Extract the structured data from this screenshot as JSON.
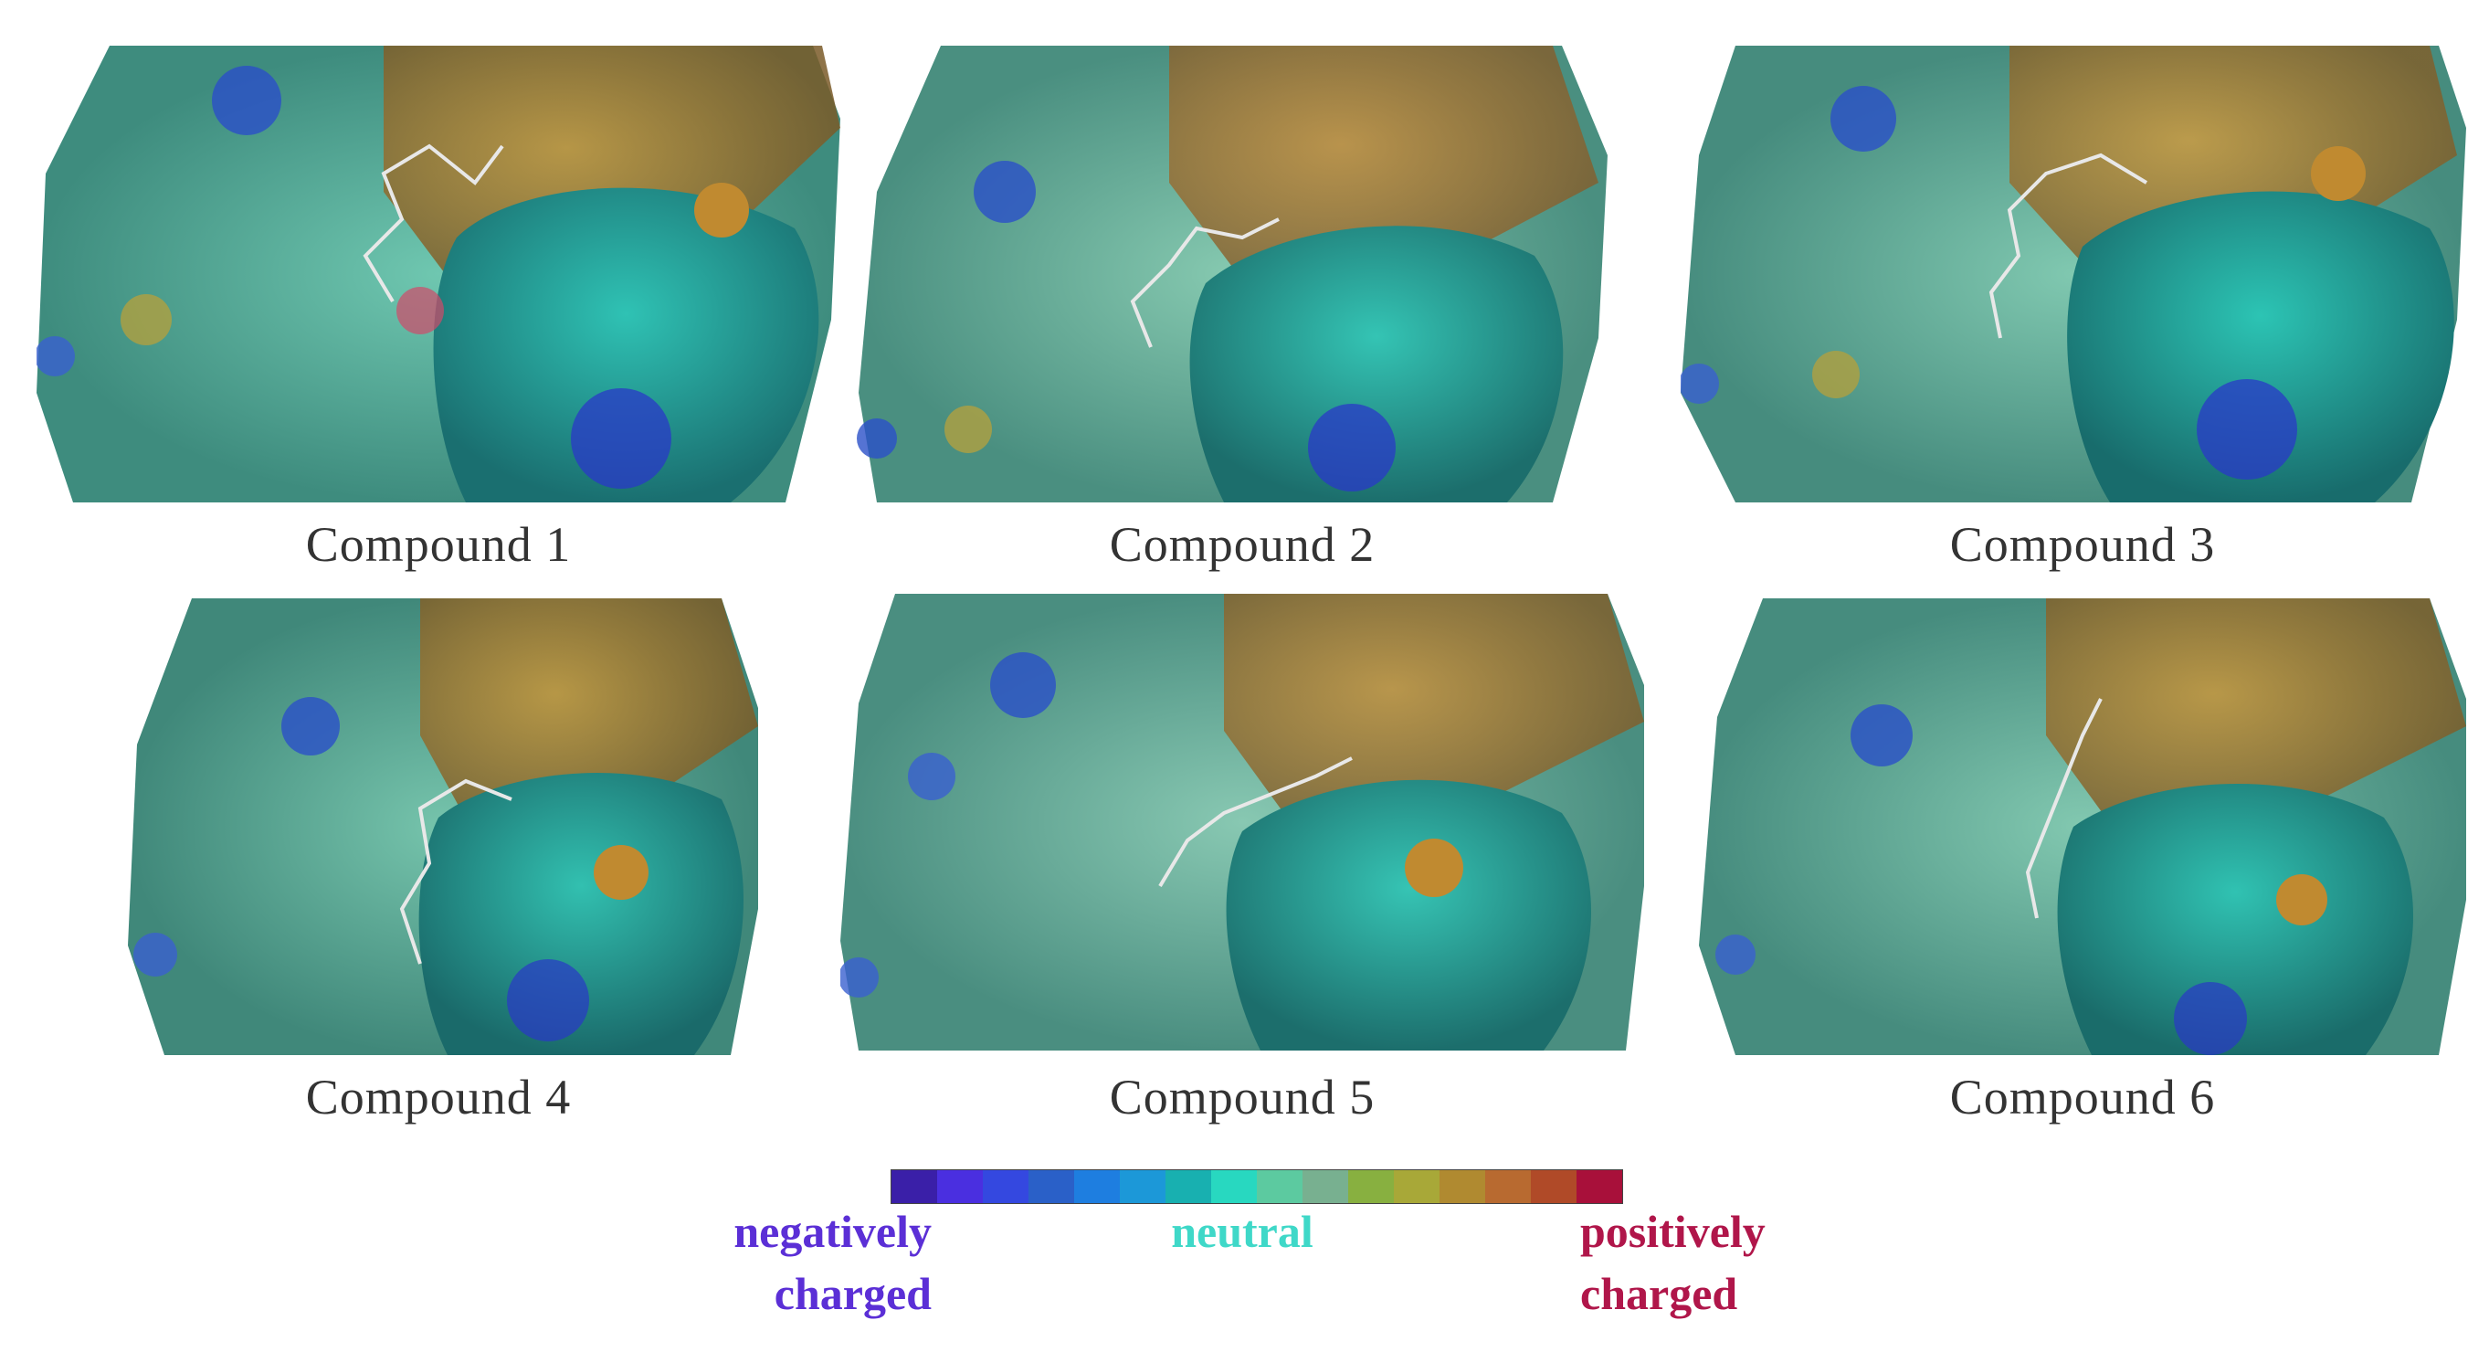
{
  "panels": [
    {
      "caption": "Compound 1"
    },
    {
      "caption": "Compound 2"
    },
    {
      "caption": "Compound 3"
    },
    {
      "caption": "Compound 4"
    },
    {
      "caption": "Compound 5"
    },
    {
      "caption": "Compound 6"
    }
  ],
  "legend": {
    "negative_line1": "negatively",
    "negative_line2": "charged",
    "neutral": "neutral",
    "positive_line1": "positively",
    "positive_line2": "charged",
    "colors": [
      "#3a1fa8",
      "#4a2fe0",
      "#3448e0",
      "#2a60c8",
      "#1e7ee0",
      "#1c98d8",
      "#18b0b0",
      "#28d8c0",
      "#5ccaa0",
      "#78b090",
      "#88b040",
      "#a8a838",
      "#b08a30",
      "#b86a30",
      "#b04a28",
      "#a8103a"
    ],
    "negative_color": "#5b2fd6",
    "neutral_color": "#3fd8c8",
    "positive_color": "#b0164a"
  }
}
